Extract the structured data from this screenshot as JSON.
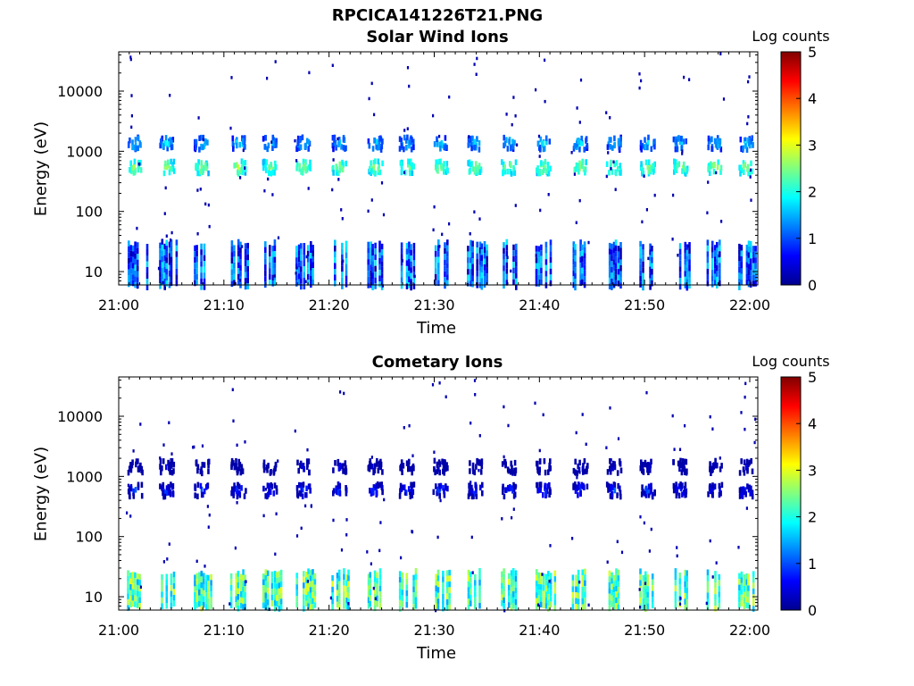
{
  "figure_title": "RPCICA141226T21.PNG",
  "colormap": "jet",
  "colors": {
    "axis": "#000000",
    "background": "#ffffff"
  },
  "chart_data": [
    {
      "type": "heatmap",
      "title": "Solar Wind Ions",
      "xlabel": "Time",
      "ylabel": "Energy (eV)",
      "xticks": [
        "21:00",
        "21:10",
        "21:20",
        "21:30",
        "21:40",
        "21:50",
        "22:00"
      ],
      "xlim": [
        "21:00",
        "22:00"
      ],
      "yscale": "log",
      "ylim": [
        6,
        45000
      ],
      "yticks": [
        {
          "value": 10,
          "label": "10"
        },
        {
          "value": 100,
          "label": "100"
        },
        {
          "value": 1000,
          "label": "1000"
        },
        {
          "value": 10000,
          "label": "10000"
        }
      ],
      "colorbar": {
        "label": "Log counts",
        "range": [
          0,
          5
        ],
        "ticks": [
          "0",
          "1",
          "2",
          "3",
          "4",
          "5"
        ]
      },
      "sweep_minutes": [
        1.5,
        4.5,
        7.8,
        11.3,
        14.3,
        17.5,
        20.9,
        24.3,
        27.3,
        30.5,
        33.8,
        37.0,
        40.3,
        43.8,
        47.0,
        50.2,
        53.3,
        56.6,
        59.6
      ],
      "features": [
        {
          "component": "solar wind peak",
          "energy_eV": 600,
          "log_counts": 2.7
        },
        {
          "component": "solar wind secondary",
          "energy_eV": 1500,
          "log_counts": 1.8
        },
        {
          "component": "low energy",
          "energy_eV": [
            6,
            35
          ],
          "log_counts": 1.0
        }
      ]
    },
    {
      "type": "heatmap",
      "title": "Cometary Ions",
      "xlabel": "Time",
      "ylabel": "Energy (eV)",
      "xticks": [
        "21:00",
        "21:10",
        "21:20",
        "21:30",
        "21:40",
        "21:50",
        "22:00"
      ],
      "xlim": [
        "21:00",
        "22:00"
      ],
      "yscale": "log",
      "ylim": [
        6,
        45000
      ],
      "yticks": [
        {
          "value": 10,
          "label": "10"
        },
        {
          "value": 100,
          "label": "100"
        },
        {
          "value": 1000,
          "label": "1000"
        },
        {
          "value": 10000,
          "label": "10000"
        }
      ],
      "colorbar": {
        "label": "Log counts",
        "range": [
          0,
          5
        ],
        "ticks": [
          "0",
          "1",
          "2",
          "3",
          "4",
          "5"
        ]
      },
      "sweep_minutes": [
        1.5,
        4.5,
        7.8,
        11.3,
        14.3,
        17.5,
        20.9,
        24.3,
        27.3,
        30.5,
        33.8,
        37.0,
        40.3,
        43.8,
        47.0,
        50.2,
        53.3,
        56.6,
        59.6
      ],
      "features": [
        {
          "component": "low energy cometary",
          "energy_eV": [
            7,
            30
          ],
          "log_counts": 2.2
        },
        {
          "component": "solar wind leakage",
          "energy_eV": 650,
          "log_counts": 1.0
        },
        {
          "component": "upper band",
          "energy_eV": 1600,
          "log_counts": 0.5
        }
      ]
    }
  ]
}
